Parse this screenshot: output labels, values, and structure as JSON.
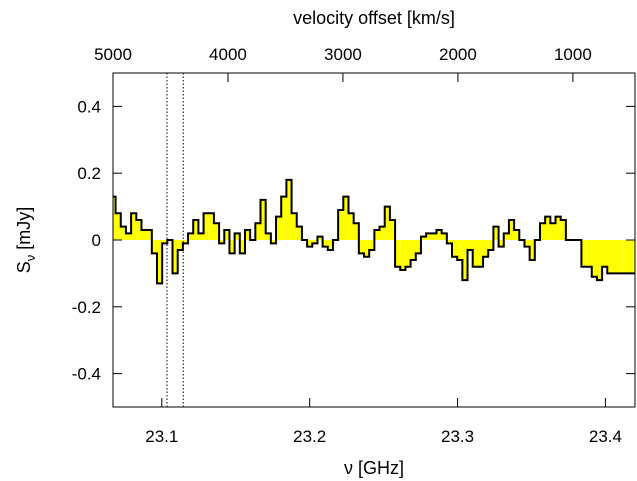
{
  "chart_data": {
    "type": "area",
    "xlabel": "ν [GHz]",
    "ylabel_main": "S",
    "ylabel_sub": "ν",
    "ylabel_unit": " [mJy]",
    "x2label": "velocity offset [km/s]",
    "xlim": [
      23.067,
      23.42
    ],
    "ylim": [
      -0.5,
      0.5
    ],
    "xticks": [
      {
        "value": 23.1,
        "label": "23.1"
      },
      {
        "value": 23.2,
        "label": "23.2"
      },
      {
        "value": 23.3,
        "label": "23.3"
      },
      {
        "value": 23.4,
        "label": "23.4"
      }
    ],
    "yticks": [
      {
        "value": 0.4,
        "label": "0.4"
      },
      {
        "value": 0.2,
        "label": "0.2"
      },
      {
        "value": 0.0,
        "label": "0"
      },
      {
        "value": -0.2,
        "label": "-0.2"
      },
      {
        "value": -0.4,
        "label": "-0.4"
      }
    ],
    "x2ticks": [
      {
        "value": 5000,
        "label": "5000"
      },
      {
        "value": 4000,
        "label": "4000"
      },
      {
        "value": 3000,
        "label": "3000"
      },
      {
        "value": 2000,
        "label": "2000"
      },
      {
        "value": 1000,
        "label": "1000"
      }
    ],
    "x2_mapping": {
      "velocity": [
        5000,
        1000
      ],
      "frequency": [
        23.067,
        23.378
      ]
    },
    "vlines": [
      23.1035,
      23.1145
    ],
    "fill_color": "#ffff00",
    "line_color": "#000000",
    "x": [
      23.067,
      23.0705,
      23.074,
      23.0775,
      23.081,
      23.0845,
      23.088,
      23.0915,
      23.095,
      23.0985,
      23.102,
      23.1055,
      23.109,
      23.1125,
      23.116,
      23.1195,
      23.123,
      23.1265,
      23.13,
      23.1335,
      23.137,
      23.1405,
      23.144,
      23.1475,
      23.151,
      23.1545,
      23.158,
      23.1615,
      23.165,
      23.1685,
      23.172,
      23.1755,
      23.179,
      23.1825,
      23.186,
      23.1895,
      23.193,
      23.1965,
      23.2,
      23.2035,
      23.207,
      23.2105,
      23.214,
      23.2175,
      23.221,
      23.2245,
      23.228,
      23.2315,
      23.235,
      23.2385,
      23.242,
      23.2455,
      23.249,
      23.2525,
      23.256,
      23.2595,
      23.263,
      23.2665,
      23.27,
      23.2735,
      23.277,
      23.2805,
      23.284,
      23.2875,
      23.291,
      23.2945,
      23.298,
      23.3015,
      23.305,
      23.3085,
      23.312,
      23.3155,
      23.319,
      23.3225,
      23.326,
      23.3295,
      23.333,
      23.3365,
      23.34,
      23.3435,
      23.347,
      23.3505,
      23.354,
      23.3575,
      23.361,
      23.3645,
      23.368,
      23.3715,
      23.375,
      23.3785,
      23.382,
      23.3855,
      23.389,
      23.3925,
      23.396,
      23.3995,
      23.403,
      23.4065,
      23.41,
      23.4135,
      23.417,
      23.42
    ],
    "values": [
      0.13,
      0.08,
      0.04,
      0.02,
      0.08,
      0.06,
      0.03,
      0.03,
      -0.04,
      -0.13,
      -0.01,
      0.0,
      -0.1,
      -0.03,
      -0.01,
      0.02,
      0.06,
      0.02,
      0.08,
      0.08,
      0.05,
      -0.01,
      0.03,
      -0.04,
      0.02,
      -0.04,
      0.03,
      0.0,
      0.05,
      0.12,
      0.02,
      -0.01,
      0.07,
      0.13,
      0.18,
      0.08,
      0.04,
      0.0,
      -0.02,
      -0.01,
      0.01,
      -0.02,
      -0.03,
      0.0,
      0.09,
      0.13,
      0.08,
      0.05,
      -0.04,
      -0.05,
      -0.03,
      0.03,
      0.04,
      0.1,
      0.06,
      -0.08,
      -0.09,
      -0.08,
      -0.06,
      -0.04,
      0.01,
      0.02,
      0.02,
      0.03,
      0.02,
      -0.01,
      -0.05,
      -0.06,
      -0.12,
      -0.03,
      -0.08,
      -0.08,
      -0.05,
      -0.03,
      0.04,
      -0.02,
      0.02,
      0.06,
      0.03,
      0.0,
      -0.02,
      -0.06,
      0.0,
      0.05,
      0.07,
      0.05,
      0.07,
      0.06,
      0.0,
      0.0,
      0.0,
      -0.08,
      -0.08,
      -0.11,
      -0.12,
      -0.08,
      -0.1,
      -0.1,
      -0.1,
      -0.1,
      -0.1,
      -0.1
    ],
    "grid": false
  }
}
